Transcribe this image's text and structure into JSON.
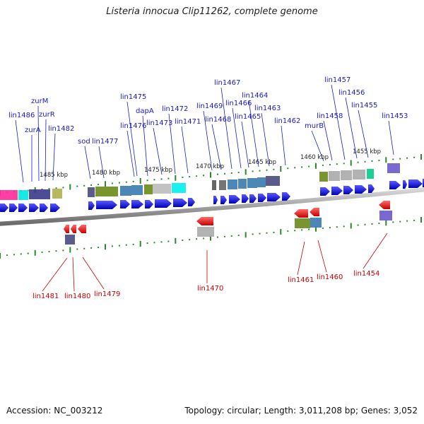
{
  "title": "Listeria innocua Clip11262, complete genome",
  "footer": {
    "accession": "Accession: NC_003212",
    "summary": "Topology: circular; Length: 3,011,208 bp; Genes: 3,052"
  },
  "scale_labels": [
    "1485 kbp",
    "1480 kbp",
    "1475 kbp",
    "1470 kbp",
    "1465 kbp",
    "1460 kbp",
    "1455 kbp"
  ],
  "forward_genes": [
    "lin1486",
    "zurA",
    "zurM",
    "zurR",
    "lin1482",
    "sod",
    "lin1477",
    "lin1476",
    "lin1475",
    "dapA",
    "lin1473",
    "lin1472",
    "lin1471",
    "lin1469",
    "lin1468",
    "lin1467",
    "lin1466",
    "lin1465",
    "lin1464",
    "lin1463",
    "lin1462",
    "murB",
    "lin1458",
    "lin1457",
    "lin1456",
    "lin1455",
    "lin1453"
  ],
  "reverse_genes": [
    "lin1481",
    "lin1480",
    "lin1479",
    "lin1470",
    "lin1461",
    "lin1460",
    "lin1454"
  ],
  "colors": {
    "forward_label": "#1a1acc",
    "reverse_label": "#cc0000",
    "forward_arrow": "#0a0ae6",
    "reverse_arrow": "#e60000",
    "backbone": "#888888",
    "tick": "#2a8a2a"
  }
}
